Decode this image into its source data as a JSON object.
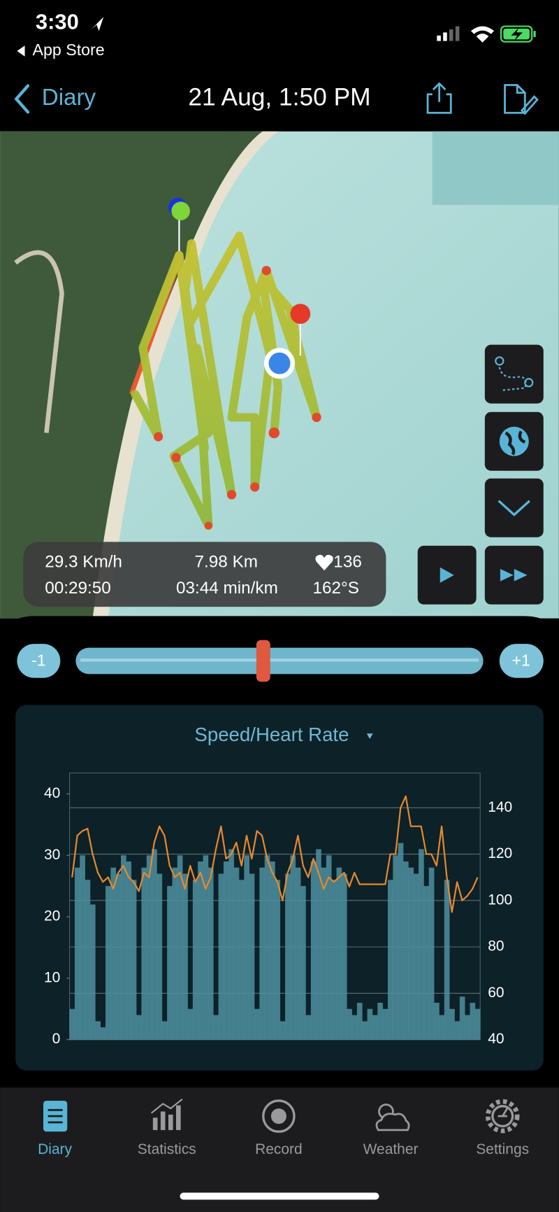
{
  "status_bar": {
    "time": "3:30",
    "back_app": "App Store"
  },
  "nav": {
    "back": "Diary",
    "title": "21 Aug, 1:50 PM"
  },
  "stats": {
    "speed": "29.3 Km/h",
    "distance": "7.98 Km",
    "heart_rate": "136",
    "duration": "00:29:50",
    "pace": "03:44 min/km",
    "heading": "162°S"
  },
  "slider": {
    "minus": "-1",
    "plus": "+1"
  },
  "chart_data": {
    "type": "line",
    "title": "Speed/Heart Rate",
    "series": [
      {
        "type": "bar",
        "color": "#4f8fa0",
        "values": [
          5,
          28,
          30,
          26,
          22,
          3,
          2,
          25,
          28,
          27,
          30,
          29,
          26,
          4,
          28,
          30,
          31,
          27,
          3,
          25,
          28,
          30,
          27,
          5,
          26,
          29,
          30,
          28,
          4,
          27,
          29,
          31,
          28,
          26,
          30,
          27,
          5,
          28,
          30,
          29,
          26,
          3,
          27,
          30,
          28,
          25,
          4,
          29,
          31,
          28,
          30,
          26,
          28,
          27,
          5,
          4,
          6,
          3,
          5,
          4,
          6,
          5,
          26,
          30,
          32,
          29,
          28,
          27,
          31,
          25,
          28,
          6,
          4,
          26,
          5,
          3,
          7,
          4,
          6,
          5
        ]
      },
      {
        "color": "#e8892e",
        "axis": "y2",
        "values": [
          110,
          128,
          130,
          131,
          120,
          112,
          108,
          110,
          105,
          112,
          115,
          110,
          108,
          104,
          112,
          110,
          125,
          132,
          128,
          115,
          110,
          112,
          105,
          115,
          108,
          112,
          105,
          110,
          122,
          132,
          118,
          120,
          125,
          115,
          128,
          118,
          130,
          128,
          118,
          112,
          108,
          100,
          112,
          118,
          128,
          115,
          110,
          118,
          112,
          105,
          110,
          108,
          110,
          112,
          106,
          112,
          107,
          107,
          107,
          107,
          107,
          107,
          120,
          120,
          140,
          145,
          132,
          132,
          132,
          120,
          120,
          115,
          132,
          110,
          95,
          108,
          100,
          102,
          105,
          110
        ]
      }
    ],
    "ylim": [
      0,
      43.4
    ],
    "yticks": [
      0,
      10,
      20,
      30,
      40
    ],
    "y2lim": [
      40,
      155
    ],
    "y2ticks": [
      40,
      60,
      80,
      100,
      120,
      140
    ],
    "grid": true
  },
  "tab_bar": {
    "tabs": [
      "Diary",
      "Statistics",
      "Record",
      "Weather",
      "Settings"
    ]
  }
}
